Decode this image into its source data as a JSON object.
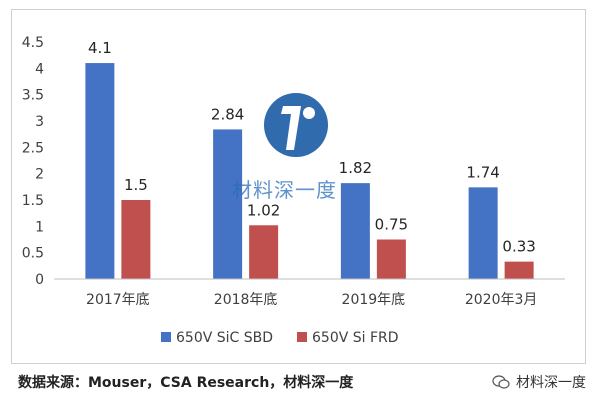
{
  "chart_data": {
    "type": "bar",
    "categories": [
      "2017年底",
      "2018年底",
      "2019年底",
      "2020年3月"
    ],
    "series": [
      {
        "name": "650V SiC SBD",
        "values": [
          4.1,
          2.84,
          1.82,
          1.74
        ],
        "color": "#4472C4"
      },
      {
        "name": "650V Si FRD",
        "values": [
          1.5,
          1.02,
          0.75,
          0.33
        ],
        "color": "#C0504D"
      }
    ],
    "data_labels": [
      [
        "4.1",
        "2.84",
        "1.82",
        "1.74"
      ],
      [
        "1.5",
        "1.02",
        "0.75",
        "0.33"
      ]
    ],
    "yticks": [
      "0",
      "0.5",
      "1",
      "1.5",
      "2",
      "2.5",
      "3",
      "3.5",
      "4",
      "4.5"
    ],
    "ylim": [
      0,
      4.5
    ],
    "legend_position": "bottom",
    "grid": false,
    "title": "",
    "xlabel": "",
    "ylabel": ""
  },
  "footer": {
    "source": "数据来源：Mouser，CSA Research，材料深一度",
    "wechat_label": "材料深一度"
  },
  "watermark": {
    "text": "材料深一度",
    "icon": "logo-circle-icon",
    "color": "#1F5FA8"
  }
}
